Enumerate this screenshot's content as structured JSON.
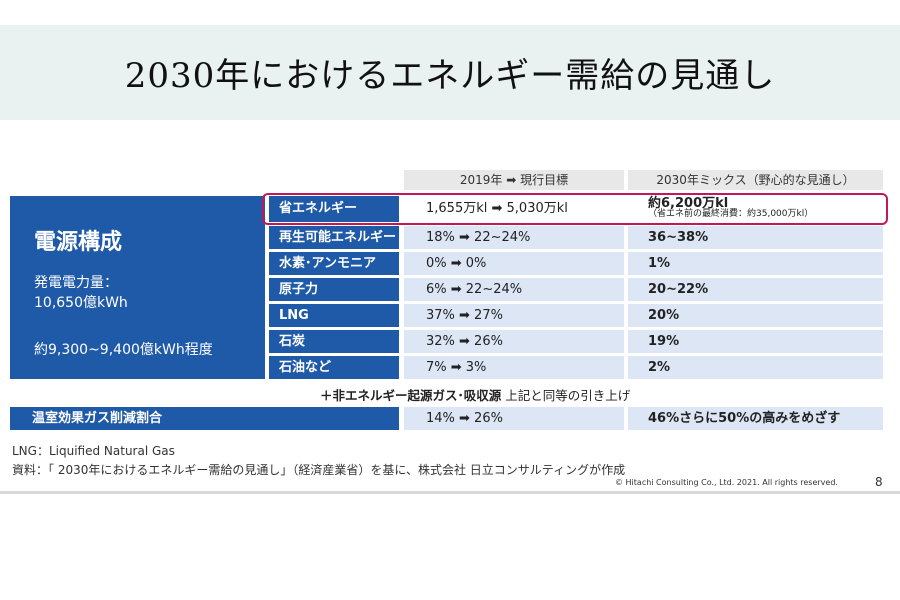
{
  "title": "2030年におけるエネルギー需給の見通し",
  "header": {
    "col1": "2019年 ➡ 現行目標",
    "col2": "2030年ミックス（野心的な見通し）"
  },
  "panel": {
    "title": "電源構成",
    "line1": "発電電力量：",
    "line2": "10,650億kWh",
    "line3": "約9,300~9,400億kWh程度"
  },
  "rows": [
    {
      "label": "省エネルギー",
      "current": "1,655万kl ➡ 5,030万kl",
      "mix": "約6,200万kl",
      "mix_sub": "（省エネ前の最終消費：約35,000万kl）"
    },
    {
      "label": "再生可能エネルギー",
      "current": "18% ➡ 22~24%",
      "mix": "36~38%"
    },
    {
      "label": "水素･アンモニア",
      "current": "0% ➡ 0%",
      "mix": "1%"
    },
    {
      "label": "原子力",
      "current": "6% ➡ 22~24%",
      "mix": "20~22%"
    },
    {
      "label": "LNG",
      "current": "37% ➡ 27%",
      "mix": "20%"
    },
    {
      "label": "石炭",
      "current": "32% ➡ 26%",
      "mix": "19%"
    },
    {
      "label": "石油など",
      "current": "7% ➡ 3%",
      "mix": "2%"
    }
  ],
  "plus_line": {
    "bold": "＋非エネルギー起源ガス･吸収源",
    "rest": " 上記と同等の引き上げ"
  },
  "gas_row": {
    "label": "温室効果ガス削減割合",
    "current": "14% ➡ 26%",
    "mix": "46%さらに50%の高みをめざす"
  },
  "footnote1": "LNG：Liquified Natural Gas",
  "footnote2": "資料：「 2030年におけるエネルギー需給の見通し」（経済産業省）を基に、株式会社 日立コンサルティングが作成",
  "copyright": "© Hitachi Consulting Co., Ltd. 2021. All rights reserved.",
  "page_number": "8",
  "colors": {
    "primary": "#1f5aa8",
    "cell": "#dce6f5",
    "highlight": "#c2185b",
    "title_band": "#eaf1f1"
  }
}
